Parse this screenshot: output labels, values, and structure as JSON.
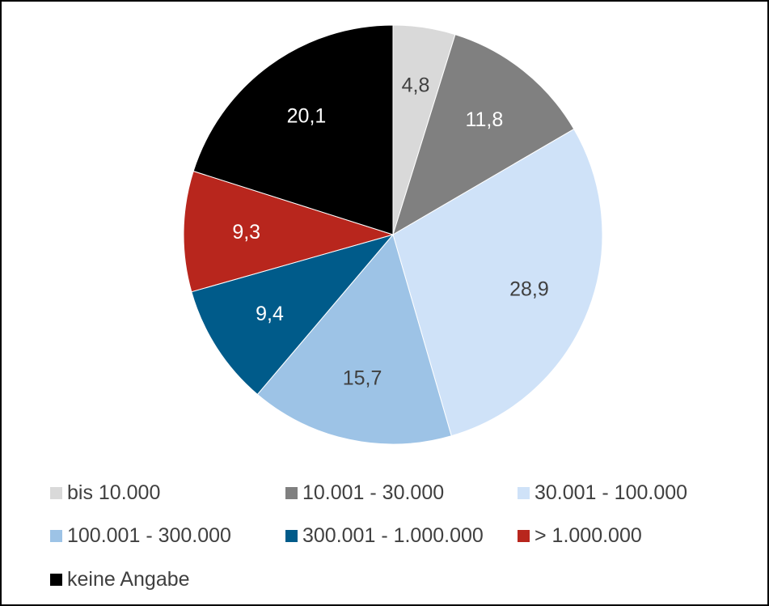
{
  "chart_data": {
    "type": "pie",
    "title": "",
    "slices": [
      {
        "label": "bis 10.000",
        "value": 4.8,
        "value_label": "4,8",
        "color": "#d9d9d9",
        "label_color": "#404040"
      },
      {
        "label": "10.001 - 30.000",
        "value": 11.8,
        "value_label": "11,8",
        "color": "#808080",
        "label_color": "#ffffff"
      },
      {
        "label": "30.001 - 100.000",
        "value": 28.9,
        "value_label": "28,9",
        "color": "#cfe2f8",
        "label_color": "#404040"
      },
      {
        "label": "100.001 - 300.000",
        "value": 15.7,
        "value_label": "15,7",
        "color": "#9dc3e6",
        "label_color": "#404040"
      },
      {
        "label": "300.001 - 1.000.000",
        "value": 9.4,
        "value_label": "9,4",
        "color": "#005b8a",
        "label_color": "#ffffff"
      },
      {
        "label": "> 1.000.000",
        "value": 9.3,
        "value_label": "9,3",
        "color": "#b8261d",
        "label_color": "#ffffff"
      },
      {
        "label": "keine Angabe",
        "value": 20.1,
        "value_label": "20,1",
        "color": "#000000",
        "label_color": "#ffffff"
      }
    ],
    "legend_position": "bottom",
    "start_angle": "12 o'clock",
    "direction": "clockwise"
  }
}
